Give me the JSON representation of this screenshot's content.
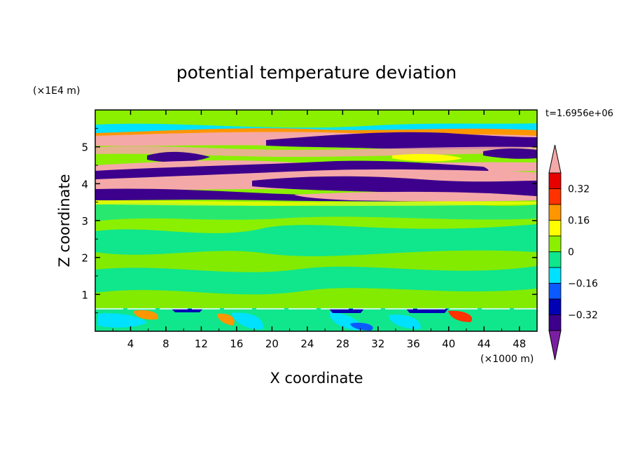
{
  "chart_data": {
    "type": "heatmap",
    "title": "potential temperature deviation",
    "xlabel": "X coordinate",
    "ylabel": "Z coordinate",
    "x_unit": "(×1000 m)",
    "y_unit": "(×1E4 m)",
    "time_label": "t=1.6956e+06",
    "xlim": [
      0,
      50
    ],
    "ylim": [
      0,
      6
    ],
    "x_ticks": [
      4,
      8,
      12,
      16,
      20,
      24,
      28,
      32,
      36,
      40,
      44,
      48
    ],
    "y_ticks": [
      1,
      2,
      3,
      4,
      5
    ],
    "colorbar": {
      "labels": [
        "0.32",
        "0.16",
        "0",
        "-0.16",
        "-0.32"
      ],
      "level_values": [
        0.32,
        0.16,
        0,
        -0.16,
        -0.32
      ],
      "levels": [
        -0.4,
        -0.32,
        -0.24,
        -0.16,
        -0.08,
        0,
        0.08,
        0.16,
        0.24,
        0.32,
        0.4
      ],
      "colors": [
        "#7b1fa2",
        "#3c008c",
        "#0000b4",
        "#0a5aff",
        "#00e1ff",
        "#10e68c",
        "#8af000",
        "#ffff00",
        "#ff9600",
        "#ff3200",
        "#e60000",
        "#f5a8a8"
      ],
      "extend": "both"
    },
    "bands": [
      {
        "z0": 5.3,
        "z1": 5.45,
        "level": "high",
        "description": "pink"
      },
      {
        "z0": 5.0,
        "z1": 5.3,
        "level": "high",
        "description": "pink"
      },
      {
        "z0": 4.75,
        "z1": 5.0,
        "level": "low",
        "description": "purple"
      },
      {
        "z0": 4.35,
        "z1": 4.55,
        "level": "high",
        "description": "pink"
      },
      {
        "z0": 4.05,
        "z1": 4.35,
        "level": "low",
        "description": "purple"
      },
      {
        "z0": 3.8,
        "z1": 4.05,
        "level": "high",
        "description": "pink"
      },
      {
        "z0": 3.55,
        "z1": 3.8,
        "level": "low",
        "description": "purple"
      }
    ]
  }
}
